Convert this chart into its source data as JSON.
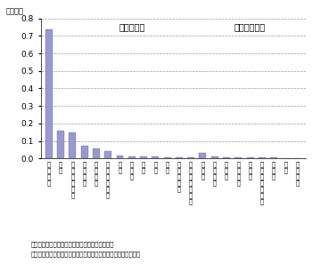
{
  "categories": [
    "輸送機械",
    "化学",
    "電気電子機械",
    "甆業土石",
    "一般機械",
    "その他製造業",
    "非鉄",
    "食料品",
    "繊維",
    "金属",
    "鉄鉱",
    "石油・石炭",
    "木材・紙パルプ",
    "印刷業",
    "情報通信",
    "建設業",
    "サービス",
    "小売業",
    "その他非製造業",
    "運輸業",
    "鉱業",
    "農林漁業"
  ],
  "values": [
    0.74,
    0.16,
    0.148,
    0.07,
    0.055,
    0.04,
    0.015,
    0.013,
    0.011,
    0.01,
    0.008,
    0.006,
    0.005,
    0.033,
    0.012,
    0.008,
    0.007,
    0.006,
    0.005,
    0.004,
    0.003,
    0.002
  ],
  "bar_color": "#9999cc",
  "ylabel": "（兆円）",
  "ylim": [
    0,
    0.8
  ],
  "yticks": [
    0.0,
    0.1,
    0.2,
    0.3,
    0.4,
    0.5,
    0.6,
    0.7,
    0.8
  ],
  "manufacturing_label": "（製造業）",
  "non_manufacturing_label": "（非製造業）",
  "note1": "備考：個票から操業中の海外現地法人で再集計。",
  "note2": "資料：経済産業省「海外事業活動基本調査」の個票から再集計。",
  "background_color": "#ffffff",
  "grid_color": "#999999",
  "grid_style": "--",
  "font_name": "IPAexGothic"
}
